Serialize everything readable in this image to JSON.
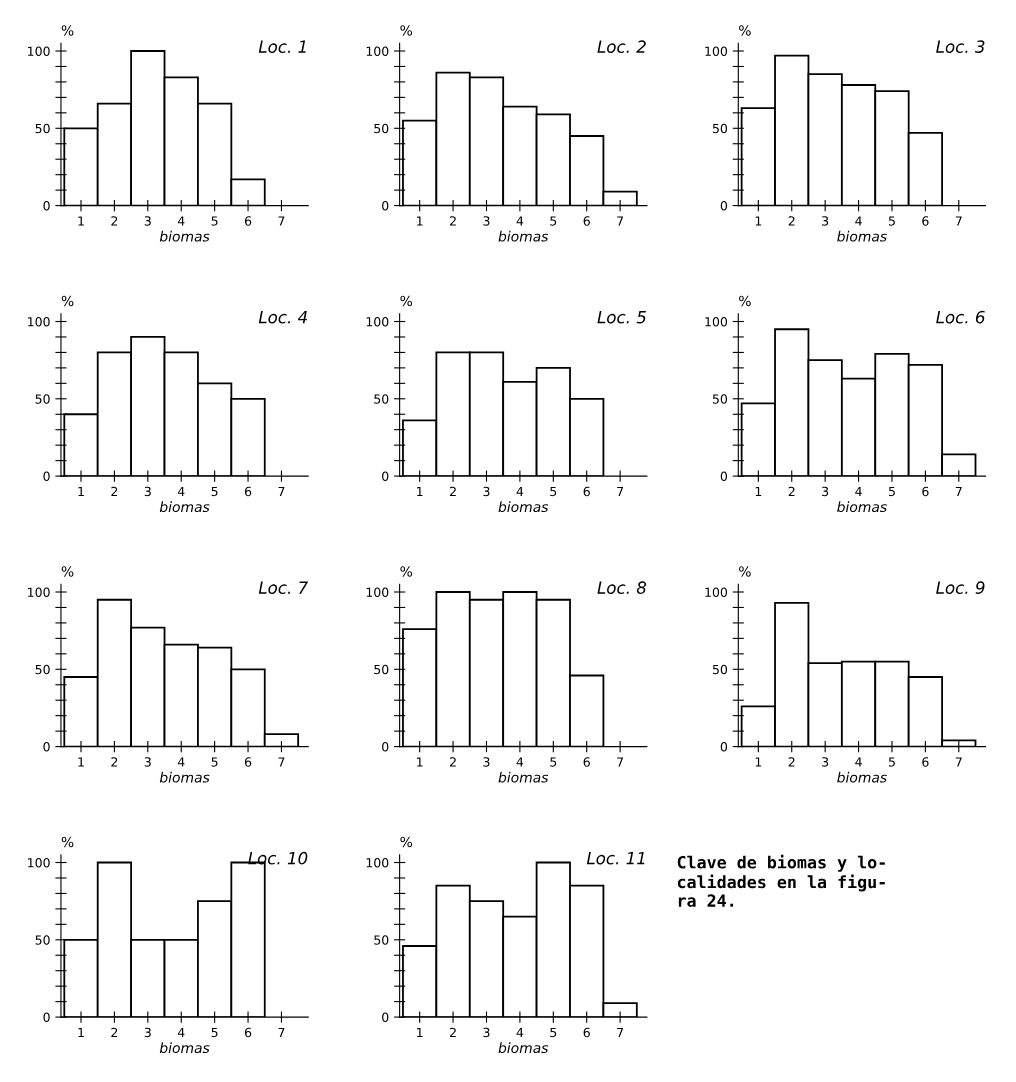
{
  "chart_data": [
    {
      "type": "bar",
      "title": "Loc. 1",
      "xlabel": "biomas",
      "ylabel": "%",
      "categories": [
        "1",
        "2",
        "3",
        "4",
        "5",
        "6",
        "7"
      ],
      "values": [
        50,
        66,
        100,
        83,
        66,
        17,
        null
      ],
      "color": "#ffffff",
      "ylim": [
        0,
        105
      ],
      "yticks": [
        0,
        {
          "value": 10,
          "label": null
        },
        {
          "value": 20,
          "label": null
        },
        {
          "value": 30,
          "label": null
        },
        {
          "value": 40,
          "label": null
        },
        50,
        {
          "value": 60,
          "label": null
        },
        {
          "value": 70,
          "label": null
        },
        {
          "value": 80,
          "label": null
        },
        {
          "value": 90,
          "label": null
        },
        100
      ],
      "grid": false
    },
    {
      "type": "bar",
      "title": "Loc. 2",
      "xlabel": "biomas",
      "ylabel": "%",
      "categories": [
        "1",
        "2",
        "3",
        "4",
        "5",
        "6",
        "7"
      ],
      "values": [
        55,
        86,
        83,
        64,
        59,
        45,
        9
      ],
      "color": "#ffffff",
      "ylim": [
        0,
        105
      ],
      "yticks": [
        0,
        {
          "value": 10,
          "label": null
        },
        {
          "value": 20,
          "label": null
        },
        {
          "value": 30,
          "label": null
        },
        {
          "value": 40,
          "label": null
        },
        50,
        {
          "value": 60,
          "label": null
        },
        {
          "value": 70,
          "label": null
        },
        {
          "value": 80,
          "label": null
        },
        {
          "value": 90,
          "label": null
        },
        100
      ],
      "grid": false
    },
    {
      "type": "bar",
      "title": "Loc. 3",
      "xlabel": "biomas",
      "ylabel": "%",
      "categories": [
        "1",
        "2",
        "3",
        "4",
        "5",
        "6",
        "7"
      ],
      "values": [
        63,
        97,
        85,
        78,
        74,
        47,
        null
      ],
      "color": "#ffffff",
      "ylim": [
        0,
        105
      ],
      "yticks": [
        0,
        {
          "value": 10,
          "label": null
        },
        {
          "value": 20,
          "label": null
        },
        {
          "value": 30,
          "label": null
        },
        {
          "value": 40,
          "label": null
        },
        50,
        {
          "value": 60,
          "label": null
        },
        {
          "value": 70,
          "label": null
        },
        {
          "value": 80,
          "label": null
        },
        {
          "value": 90,
          "label": null
        },
        100
      ],
      "grid": false
    },
    {
      "type": "bar",
      "title": "Loc. 4",
      "xlabel": "biomas",
      "ylabel": "%",
      "categories": [
        "1",
        "2",
        "3",
        "4",
        "5",
        "6",
        "7"
      ],
      "values": [
        40,
        80,
        90,
        80,
        60,
        50,
        null
      ],
      "color": "#ffffff",
      "ylim": [
        0,
        105
      ],
      "yticks": [
        0,
        {
          "value": 10,
          "label": null
        },
        {
          "value": 20,
          "label": null
        },
        {
          "value": 30,
          "label": null
        },
        {
          "value": 40,
          "label": null
        },
        50,
        {
          "value": 60,
          "label": null
        },
        {
          "value": 70,
          "label": null
        },
        {
          "value": 80,
          "label": null
        },
        {
          "value": 90,
          "label": null
        },
        100
      ],
      "grid": false
    },
    {
      "type": "bar",
      "title": "Loc. 5",
      "xlabel": "biomas",
      "ylabel": "%",
      "categories": [
        "1",
        "2",
        "3",
        "4",
        "5",
        "6",
        "7"
      ],
      "values": [
        36,
        80,
        80,
        61,
        70,
        50,
        null
      ],
      "color": "#ffffff",
      "ylim": [
        0,
        105
      ],
      "yticks": [
        0,
        {
          "value": 10,
          "label": null
        },
        {
          "value": 20,
          "label": null
        },
        {
          "value": 30,
          "label": null
        },
        {
          "value": 40,
          "label": null
        },
        50,
        {
          "value": 60,
          "label": null
        },
        {
          "value": 70,
          "label": null
        },
        {
          "value": 80,
          "label": null
        },
        {
          "value": 90,
          "label": null
        },
        100
      ],
      "grid": false
    },
    {
      "type": "bar",
      "title": "Loc. 6",
      "xlabel": "biomas",
      "ylabel": "%",
      "categories": [
        "1",
        "2",
        "3",
        "4",
        "5",
        "6",
        "7"
      ],
      "values": [
        47,
        95,
        75,
        63,
        79,
        72,
        14
      ],
      "color": "#ffffff",
      "ylim": [
        0,
        105
      ],
      "yticks": [
        0,
        {
          "value": 10,
          "label": null
        },
        {
          "value": 20,
          "label": null
        },
        {
          "value": 30,
          "label": null
        },
        {
          "value": 40,
          "label": null
        },
        50,
        {
          "value": 60,
          "label": null
        },
        {
          "value": 70,
          "label": null
        },
        {
          "value": 80,
          "label": null
        },
        {
          "value": 90,
          "label": null
        },
        100
      ],
      "grid": false
    },
    {
      "type": "bar",
      "title": "Loc. 7",
      "xlabel": "biomas",
      "ylabel": "%",
      "categories": [
        "1",
        "2",
        "3",
        "4",
        "5",
        "6",
        "7"
      ],
      "values": [
        45,
        95,
        77,
        66,
        64,
        50,
        8
      ],
      "color": "#ffffff",
      "ylim": [
        0,
        105
      ],
      "yticks": [
        0,
        {
          "value": 10,
          "label": null
        },
        {
          "value": 20,
          "label": null
        },
        {
          "value": 30,
          "label": null
        },
        {
          "value": 40,
          "label": null
        },
        50,
        {
          "value": 60,
          "label": null
        },
        {
          "value": 70,
          "label": null
        },
        {
          "value": 80,
          "label": null
        },
        {
          "value": 90,
          "label": null
        },
        100
      ],
      "grid": false
    },
    {
      "type": "bar",
      "title": "Loc. 8",
      "xlabel": "biomas",
      "ylabel": "%",
      "categories": [
        "1",
        "2",
        "3",
        "4",
        "5",
        "6",
        "7"
      ],
      "values": [
        76,
        100,
        95,
        100,
        95,
        46,
        null
      ],
      "color": "#ffffff",
      "ylim": [
        0,
        105
      ],
      "yticks": [
        0,
        {
          "value": 10,
          "label": null
        },
        {
          "value": 20,
          "label": null
        },
        {
          "value": 30,
          "label": null
        },
        {
          "value": 40,
          "label": null
        },
        50,
        {
          "value": 60,
          "label": null
        },
        {
          "value": 70,
          "label": null
        },
        {
          "value": 80,
          "label": null
        },
        {
          "value": 90,
          "label": null
        },
        100
      ],
      "grid": false
    },
    {
      "type": "bar",
      "title": "Loc. 9",
      "xlabel": "biomas",
      "ylabel": "%",
      "categories": [
        "1",
        "2",
        "3",
        "4",
        "5",
        "6",
        "7"
      ],
      "values": [
        26,
        93,
        54,
        55,
        55,
        45,
        4
      ],
      "color": "#ffffff",
      "ylim": [
        0,
        105
      ],
      "yticks": [
        0,
        {
          "value": 10,
          "label": null
        },
        {
          "value": 20,
          "label": null
        },
        {
          "value": 30,
          "label": null
        },
        {
          "value": 40,
          "label": null
        },
        50,
        {
          "value": 60,
          "label": null
        },
        {
          "value": 70,
          "label": null
        },
        {
          "value": 80,
          "label": null
        },
        {
          "value": 90,
          "label": null
        },
        100
      ],
      "grid": false
    },
    {
      "type": "bar",
      "title": "Loc. 10",
      "xlabel": "biomas",
      "ylabel": "%",
      "categories": [
        "1",
        "2",
        "3",
        "4",
        "5",
        "6",
        "7"
      ],
      "values": [
        50,
        100,
        50,
        50,
        75,
        100,
        null
      ],
      "color": "#ffffff",
      "ylim": [
        0,
        105
      ],
      "yticks": [
        0,
        {
          "value": 10,
          "label": null
        },
        {
          "value": 20,
          "label": null
        },
        {
          "value": 30,
          "label": null
        },
        {
          "value": 40,
          "label": null
        },
        50,
        {
          "value": 60,
          "label": null
        },
        {
          "value": 70,
          "label": null
        },
        {
          "value": 80,
          "label": null
        },
        {
          "value": 90,
          "label": null
        },
        100
      ],
      "grid": false
    },
    {
      "type": "bar",
      "title": "Loc. 11",
      "xlabel": "biomas",
      "ylabel": "%",
      "categories": [
        "1",
        "2",
        "3",
        "4",
        "5",
        "6",
        "7"
      ],
      "values": [
        46,
        85,
        75,
        65,
        100,
        85,
        9
      ],
      "annotations": [
        "Clave de biomas y lo-\ncalidades en la figu-\nra 24."
      ],
      "color": "#ffffff",
      "ylim": [
        0,
        105
      ],
      "yticks": [
        0,
        {
          "value": 10,
          "label": null
        },
        {
          "value": 20,
          "label": null
        },
        {
          "value": 30,
          "label": null
        },
        {
          "value": 40,
          "label": null
        },
        50,
        {
          "value": 60,
          "label": null
        },
        {
          "value": 70,
          "label": null
        },
        {
          "value": 80,
          "label": null
        },
        {
          "value": 90,
          "label": null
        },
        100
      ],
      "grid": false
    }
  ]
}
